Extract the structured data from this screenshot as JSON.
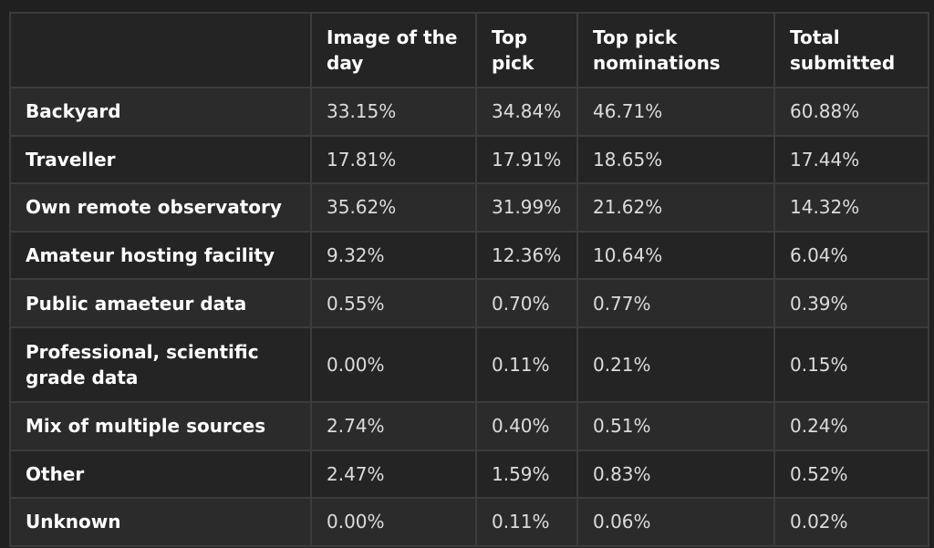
{
  "table": {
    "headers": [
      "",
      "Image of the day",
      "Top pick",
      "Top pick nominations",
      "Total submitted"
    ],
    "rows": [
      {
        "label": "Backyard",
        "values": [
          "33.15%",
          "34.84%",
          "46.71%",
          "60.88%"
        ]
      },
      {
        "label": "Traveller",
        "values": [
          "17.81%",
          "17.91%",
          "18.65%",
          "17.44%"
        ]
      },
      {
        "label": "Own remote observatory",
        "values": [
          "35.62%",
          "31.99%",
          "21.62%",
          "14.32%"
        ]
      },
      {
        "label": "Amateur hosting facility",
        "values": [
          "9.32%",
          "12.36%",
          "10.64%",
          "6.04%"
        ]
      },
      {
        "label": "Public amaeteur data",
        "values": [
          "0.55%",
          "0.70%",
          "0.77%",
          "0.39%"
        ]
      },
      {
        "label": "Professional, scientific grade data",
        "values": [
          "0.00%",
          "0.11%",
          "0.21%",
          "0.15%"
        ]
      },
      {
        "label": "Mix of multiple sources",
        "values": [
          "2.74%",
          "0.40%",
          "0.51%",
          "0.24%"
        ]
      },
      {
        "label": "Other",
        "values": [
          "2.47%",
          "1.59%",
          "0.83%",
          "0.52%"
        ]
      },
      {
        "label": "Unknown",
        "values": [
          "0.00%",
          "0.11%",
          "0.06%",
          "0.02%"
        ]
      }
    ]
  }
}
